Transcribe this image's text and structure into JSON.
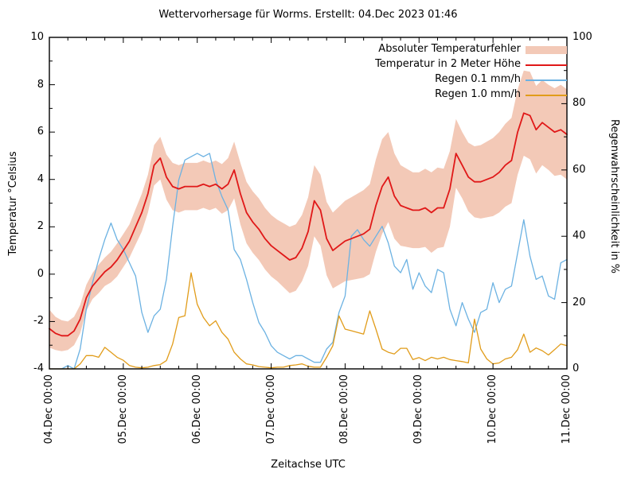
{
  "title": "Wettervorhersage für Worms. Erstellt: 04.Dec 2023 01:46",
  "axes": {
    "x_label": "Zeitachse UTC",
    "y_left_label": "Temperatur °Celsius",
    "y_right_label": "Regenwahrscheinlichkeit in %"
  },
  "legend": {
    "items": [
      {
        "label": "Absoluter Temperaturfehler",
        "style": "band",
        "color": "#f3c9b7"
      },
      {
        "label": "Temperatur in 2 Meter Höhe",
        "style": "line",
        "color": "#e01818"
      },
      {
        "label": "Regen 0.1 mm/h",
        "style": "line",
        "color": "#6cb2e2"
      },
      {
        "label": "Regen 1.0 mm/h",
        "style": "line",
        "color": "#e19c1a"
      }
    ]
  },
  "chart_data": {
    "type": "line",
    "title": "Wettervorhersage für Worms. Erstellt: 04.Dec 2023 01:46",
    "xlabel": "Zeitachse UTC",
    "x_start": "04.Dec 00:00 UTC",
    "x_step_hours": 2,
    "x_tick_labels": [
      "04.Dec 00:00",
      "05.Dec 00:00",
      "06.Dec 00:00",
      "07.Dec 00:00",
      "08.Dec 00:00",
      "09.Dec 00:00",
      "10.Dec 00:00",
      "11.Dec 00:00"
    ],
    "y_left": {
      "label": "Temperatur °Celsius",
      "range": [
        -4,
        10
      ],
      "major_ticks": [
        10,
        8,
        6,
        4,
        2,
        0,
        -2,
        -4
      ],
      "minor_step": 1
    },
    "y_right": {
      "label": "Regenwahrscheinlichkeit in %",
      "range": [
        0,
        100
      ],
      "major_ticks": [
        100,
        80,
        60,
        40,
        20,
        0
      ],
      "minor_step": 10
    },
    "grid": false,
    "legend_position": "top-right-inside",
    "series": [
      {
        "name": "Absoluter Temperaturfehler",
        "axis": "left",
        "style": "band-around-temperature",
        "color": "#f3c9b7",
        "half_width": [
          0.8,
          0.7,
          0.65,
          0.6,
          0.6,
          0.6,
          0.55,
          0.55,
          0.6,
          0.6,
          0.65,
          0.7,
          0.7,
          0.7,
          0.75,
          0.8,
          0.8,
          0.85,
          0.9,
          0.95,
          1.0,
          1.0,
          1.0,
          1.0,
          1.0,
          1.0,
          1.0,
          1.0,
          1.05,
          1.1,
          1.2,
          1.3,
          1.3,
          1.3,
          1.3,
          1.3,
          1.3,
          1.3,
          1.35,
          1.4,
          1.4,
          1.4,
          1.45,
          1.5,
          1.5,
          1.55,
          1.6,
          1.65,
          1.7,
          1.75,
          1.8,
          1.85,
          1.9,
          1.95,
          2.0,
          1.9,
          1.8,
          1.7,
          1.65,
          1.6,
          1.6,
          1.65,
          1.7,
          1.7,
          1.65,
          1.6,
          1.45,
          1.4,
          1.45,
          1.5,
          1.55,
          1.6,
          1.65,
          1.7,
          1.75,
          1.8,
          1.8,
          1.8,
          1.85,
          1.85,
          1.8,
          1.8,
          1.85,
          1.9,
          1.9
        ]
      },
      {
        "name": "Temperatur in 2 Meter Höhe",
        "axis": "left",
        "style": "line",
        "color": "#e01818",
        "unit": "°C",
        "values": [
          -2.3,
          -2.5,
          -2.6,
          -2.6,
          -2.4,
          -1.9,
          -1.0,
          -0.5,
          -0.2,
          0.1,
          0.3,
          0.6,
          1.0,
          1.4,
          2.0,
          2.6,
          3.4,
          4.6,
          4.9,
          4.1,
          3.7,
          3.6,
          3.7,
          3.7,
          3.7,
          3.8,
          3.7,
          3.8,
          3.6,
          3.8,
          4.4,
          3.4,
          2.6,
          2.2,
          1.9,
          1.5,
          1.2,
          1.0,
          0.8,
          0.6,
          0.7,
          1.1,
          1.8,
          3.1,
          2.7,
          1.5,
          1.0,
          1.2,
          1.4,
          1.5,
          1.6,
          1.7,
          1.9,
          2.9,
          3.7,
          4.1,
          3.3,
          2.9,
          2.8,
          2.7,
          2.7,
          2.8,
          2.6,
          2.8,
          2.8,
          3.6,
          5.1,
          4.6,
          4.1,
          3.9,
          3.9,
          4.0,
          4.1,
          4.3,
          4.6,
          4.8,
          6.0,
          6.8,
          6.7,
          6.1,
          6.4,
          6.2,
          6.0,
          6.1,
          5.9
        ]
      },
      {
        "name": "Regen 0.1 mm/h",
        "axis": "right",
        "style": "line",
        "color": "#6cb2e2",
        "unit": "%",
        "values": [
          0,
          0,
          0,
          1,
          0,
          6,
          18,
          26,
          33,
          39,
          44,
          39,
          36,
          32,
          28,
          17,
          11,
          16,
          18,
          27,
          43,
          57,
          63,
          64,
          65,
          64,
          65,
          57,
          52,
          48,
          36,
          33,
          27,
          20,
          14,
          11,
          7,
          5,
          4,
          3,
          4,
          4,
          3,
          2,
          2,
          6,
          8,
          17,
          22,
          40,
          42,
          39,
          37,
          40,
          43,
          38,
          31,
          29,
          33,
          24,
          29,
          25,
          23,
          30,
          29,
          18,
          13,
          20,
          15,
          11,
          17,
          18,
          26,
          20,
          24,
          25,
          35,
          45,
          34,
          27,
          28,
          22,
          21,
          32,
          33
        ]
      },
      {
        "name": "Regen 1.0 mm/h",
        "axis": "right",
        "style": "line",
        "color": "#e19c1a",
        "unit": "%",
        "values": [
          0,
          0,
          0,
          0,
          0,
          1.5,
          4,
          4,
          3.5,
          6.5,
          5,
          3.5,
          2.6,
          1,
          0.5,
          0.3,
          0.5,
          1,
          1.3,
          2.5,
          7.5,
          15.5,
          16,
          29,
          19.5,
          15.5,
          13,
          14.5,
          11,
          9,
          5,
          3,
          1.5,
          1.2,
          0.7,
          0.5,
          0.3,
          0.5,
          0.5,
          1,
          1.2,
          1.5,
          0.8,
          0.5,
          0.5,
          3.5,
          7,
          16,
          12,
          11.5,
          11,
          10.5,
          17.5,
          12,
          6,
          5,
          4.5,
          6.2,
          6.2,
          2.8,
          3.4,
          2.5,
          3.5,
          3,
          3.5,
          2.8,
          2.5,
          2.2,
          1.8,
          15,
          6,
          3,
          1.5,
          1.8,
          3,
          3.5,
          5.8,
          10.5,
          5,
          6.3,
          5.5,
          4.2,
          5.8,
          7.5,
          7
        ]
      }
    ]
  }
}
